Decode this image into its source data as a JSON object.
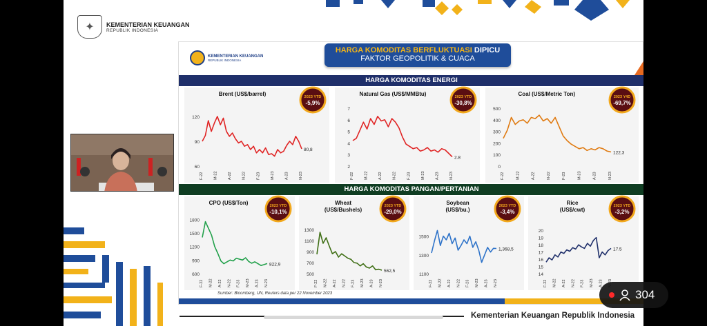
{
  "header": {
    "ministry": "KEMENTERIAN KEUANGAN",
    "republic": "REPUBLIK INDONESIA"
  },
  "slide": {
    "logo_text": "KEMENTERIAN KEUANGAN",
    "logo_sub": "REPUBLIK INDONESIA",
    "title_highlight": "HARGA KOMODITAS BERFLUKTUASI",
    "title_rest": "DIPICU",
    "title_line2": "FAKTOR GEOPOLITIK & CUACA",
    "energy_section": "HARGA KOMODITAS ENERGI",
    "food_section": "HARGA KOMODITAS PANGAN/PERTANIAN",
    "source": "Sumber: Bloomberg, UN, Reuters data per 22 November 2023",
    "colors": {
      "navy": "#1f2f6a",
      "green": "#0f3d22",
      "badge": "#5a0e12",
      "badge_ring": "#f2a81c"
    }
  },
  "viewer": {
    "count": "304"
  },
  "footer": {
    "caption": "Kementerian Keuangan Republik Indonesia"
  },
  "chart_data": [
    {
      "type": "line",
      "title": "Brent (US$/barrel)",
      "badge_label": "2023 YTD",
      "badge_value": "-5,9%",
      "color": "#e02323",
      "yticks": [
        "120",
        "90",
        "60"
      ],
      "ylim": [
        60,
        130
      ],
      "last_label": "80,8",
      "xticks": [
        "F-22",
        "M-22",
        "A-22",
        "N-22",
        "F-23",
        "M-23",
        "A-23",
        "N-23"
      ],
      "values": [
        90,
        97,
        115,
        102,
        112,
        120,
        110,
        118,
        102,
        96,
        100,
        93,
        88,
        90,
        84,
        86,
        80,
        84,
        76,
        80,
        76,
        82,
        74,
        75,
        72,
        80,
        76,
        78,
        85,
        90,
        86,
        96,
        90,
        80.8
      ]
    },
    {
      "type": "line",
      "title": "Natural Gas (US$/MMBtu)",
      "badge_label": "2023 YTD",
      "badge_value": "-30,8%",
      "color": "#e02323",
      "yticks": [
        "7",
        "6",
        "5",
        "4",
        "3",
        "2"
      ],
      "ylim": [
        2,
        7
      ],
      "last_label": "2.8",
      "xticks": [
        "F-22",
        "M-22",
        "A-22",
        "N-22",
        "F-23",
        "M-23",
        "A-23",
        "N-23"
      ],
      "values": [
        4.2,
        4.4,
        5.1,
        5.8,
        5.2,
        6.1,
        5.6,
        6.3,
        5.9,
        6.0,
        5.4,
        6.1,
        5.8,
        5.3,
        4.5,
        3.9,
        3.7,
        3.5,
        3.6,
        3.3,
        3.4,
        3.6,
        3.3,
        3.4,
        3.2,
        3.5,
        3.4,
        3.1,
        2.8
      ]
    },
    {
      "type": "line",
      "title": "Coal (US$/Metric Ton)",
      "badge_label": "2023 Y4D",
      "badge_value": "-69,7%",
      "color": "#e07a10",
      "yticks": [
        "500",
        "400",
        "300",
        "200",
        "100",
        "0"
      ],
      "ylim": [
        0,
        500
      ],
      "last_label": "122,3",
      "xticks": [
        "F-22",
        "M-22",
        "A-22",
        "N-22",
        "F-23",
        "M-23",
        "A-23",
        "N-23"
      ],
      "values": [
        240,
        310,
        420,
        360,
        390,
        400,
        370,
        420,
        410,
        440,
        390,
        410,
        370,
        420,
        340,
        260,
        220,
        190,
        170,
        150,
        160,
        135,
        150,
        140,
        160,
        150,
        130,
        122.3
      ]
    },
    {
      "type": "line",
      "title": "CPO (US$/Ton)",
      "badge_label": "2023 YTD",
      "badge_value": "-10,1%",
      "color": "#21a04a",
      "yticks": [
        "1800",
        "1500",
        "1200",
        "900",
        "600"
      ],
      "ylim": [
        600,
        1850
      ],
      "last_label": "822,9",
      "xticks": [
        "F-22",
        "M-22",
        "A-22",
        "N-22",
        "F-23",
        "M-23",
        "A-23",
        "N-23"
      ],
      "values": [
        1400,
        1750,
        1600,
        1450,
        1200,
        1050,
        880,
        820,
        860,
        900,
        880,
        940,
        920,
        900,
        950,
        870,
        830,
        860,
        820,
        780,
        800,
        822.9
      ]
    },
    {
      "type": "line",
      "title": "Wheat",
      "title2": "(US$/Bushels)",
      "badge_label": "2023 YTD",
      "badge_value": "-29,0%",
      "color": "#3e6e14",
      "yticks": [
        "1300",
        "1100",
        "900",
        "700",
        "500"
      ],
      "ylim": [
        500,
        1350
      ],
      "last_label": "562,5",
      "xticks": [
        "F-22",
        "M-22",
        "A-22",
        "N-22",
        "F-23",
        "M-23",
        "A-23",
        "N-23"
      ],
      "values": [
        850,
        1250,
        1050,
        1150,
        1000,
        860,
        900,
        800,
        860,
        820,
        780,
        760,
        700,
        690,
        640,
        680,
        620,
        600,
        640,
        570,
        580,
        562.5
      ]
    },
    {
      "type": "line",
      "title": "Soybean",
      "title2": "(US$/bu.)",
      "badge_label": "2023 YTD",
      "badge_value": "-3,4%",
      "color": "#2e73c9",
      "yticks": [
        "1500",
        "1300",
        "1100"
      ],
      "ylim": [
        1100,
        1600
      ],
      "last_label": "1,368,5",
      "xticks": [
        "F-22",
        "M-22",
        "A-22",
        "N-22",
        "F-23",
        "M-23",
        "A-23",
        "N-23"
      ],
      "values": [
        1320,
        1450,
        1560,
        1400,
        1500,
        1460,
        1530,
        1420,
        1480,
        1350,
        1400,
        1460,
        1420,
        1500,
        1380,
        1440,
        1350,
        1220,
        1300,
        1380,
        1330,
        1370,
        1368.5
      ]
    },
    {
      "type": "line",
      "title": "Rice",
      "title2": "(US$/cwt)",
      "badge_label": "2023 YTD",
      "badge_value": "-3,2%",
      "color": "#1f2f6a",
      "yticks": [
        "20",
        "19",
        "18",
        "17",
        "16",
        "15",
        "14"
      ],
      "ylim": [
        14,
        20.5
      ],
      "last_label": "17.5",
      "xticks": [
        "F-22",
        "M-22",
        "A-22",
        "N-22",
        "F-23",
        "M-23",
        "A-23",
        "N-23"
      ],
      "values": [
        15.6,
        16.2,
        15.9,
        16.6,
        16.3,
        17.0,
        16.8,
        17.3,
        17.1,
        17.6,
        17.4,
        18.0,
        17.7,
        17.5,
        18.2,
        17.8,
        18.6,
        19.0,
        16.2,
        17.0,
        16.6,
        17.2,
        17.5
      ]
    }
  ]
}
